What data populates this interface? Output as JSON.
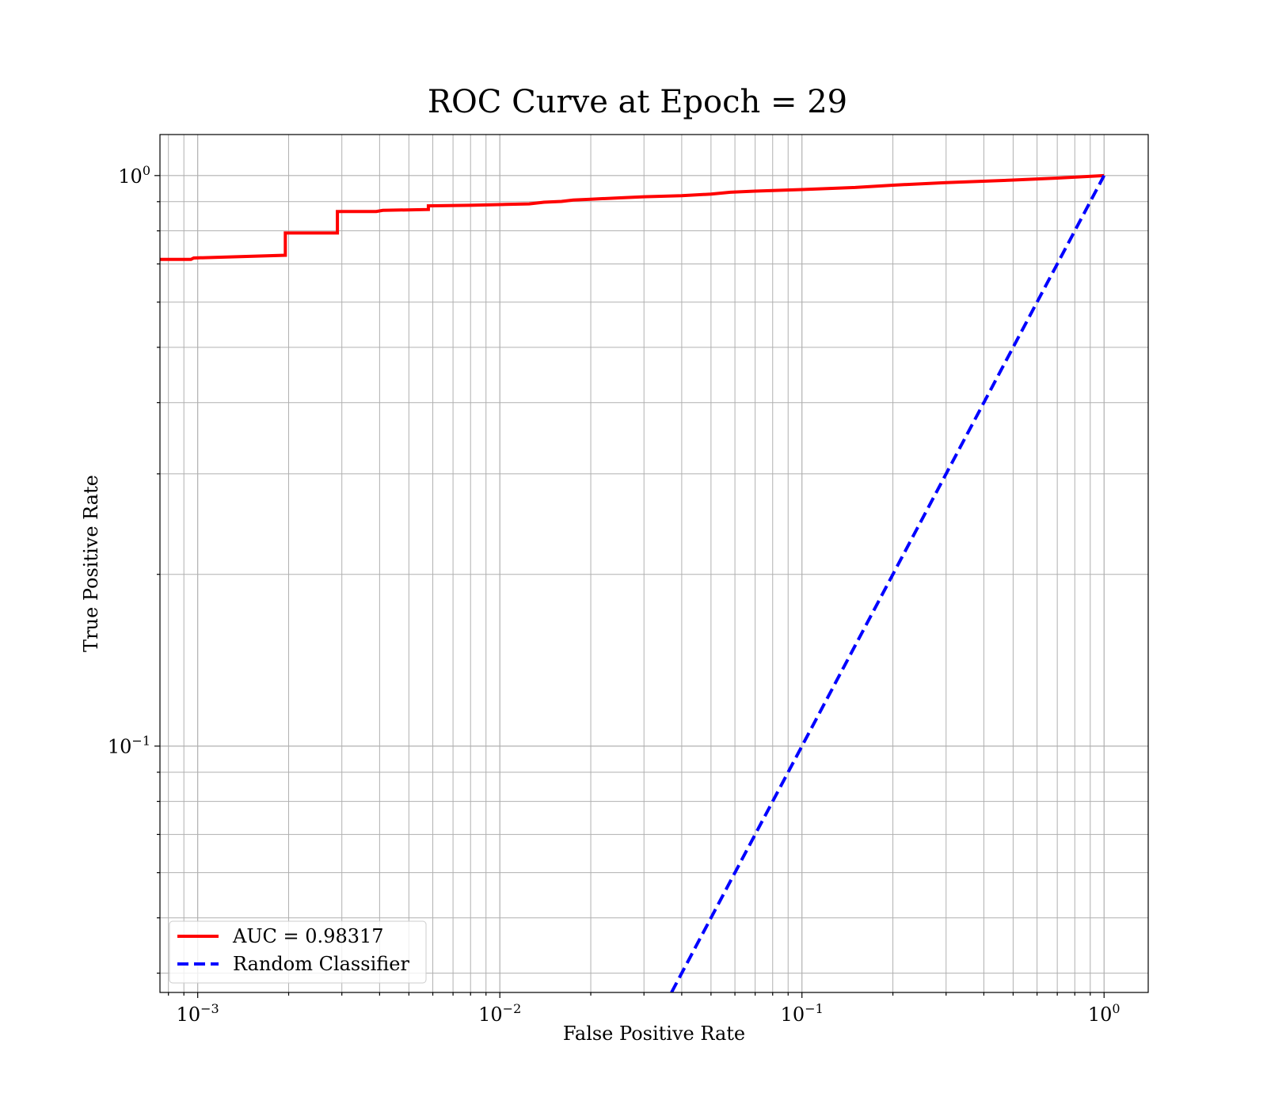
{
  "chart_data": {
    "type": "line",
    "title": "ROC Curve at Epoch = 29",
    "xlabel": "False Positive Rate",
    "ylabel": "True Positive Rate",
    "xscale": "log",
    "yscale": "log",
    "xlim": [
      0.00075,
      1.4
    ],
    "ylim": [
      0.037,
      1.18
    ],
    "grid": "both (major and minor)",
    "legend_position": "lower-left",
    "x_ticks": [
      {
        "value": 0.001,
        "base": "10",
        "exp": "−3"
      },
      {
        "value": 0.01,
        "base": "10",
        "exp": "−2"
      },
      {
        "value": 0.1,
        "base": "10",
        "exp": "−1"
      },
      {
        "value": 1,
        "base": "10",
        "exp": "0"
      }
    ],
    "y_ticks": [
      {
        "value": 0.1,
        "base": "10",
        "exp": "−1"
      },
      {
        "value": 1,
        "base": "10",
        "exp": "0"
      }
    ],
    "series": [
      {
        "name": "AUC = 0.98317",
        "color": "#ff0000",
        "style": "solid",
        "x": [
          0.00075,
          0.00095,
          0.00097,
          0.00195,
          0.00195,
          0.0029,
          0.0029,
          0.0039,
          0.0041,
          0.0058,
          0.0058,
          0.008,
          0.0105,
          0.0125,
          0.014,
          0.016,
          0.0175,
          0.02,
          0.025,
          0.03,
          0.04,
          0.05,
          0.058,
          0.07,
          0.1,
          0.15,
          0.2,
          0.3,
          0.5,
          0.7,
          1.0
        ],
        "y": [
          0.713,
          0.713,
          0.717,
          0.725,
          0.793,
          0.793,
          0.865,
          0.865,
          0.869,
          0.872,
          0.885,
          0.887,
          0.89,
          0.892,
          0.898,
          0.901,
          0.906,
          0.909,
          0.914,
          0.918,
          0.922,
          0.928,
          0.935,
          0.939,
          0.945,
          0.953,
          0.962,
          0.972,
          0.982,
          0.99,
          1.0
        ]
      },
      {
        "name": "Random Classifier",
        "color": "#0000ff",
        "style": "dashed",
        "x": [
          0.037,
          1.0
        ],
        "y": [
          0.037,
          1.0
        ]
      }
    ]
  }
}
